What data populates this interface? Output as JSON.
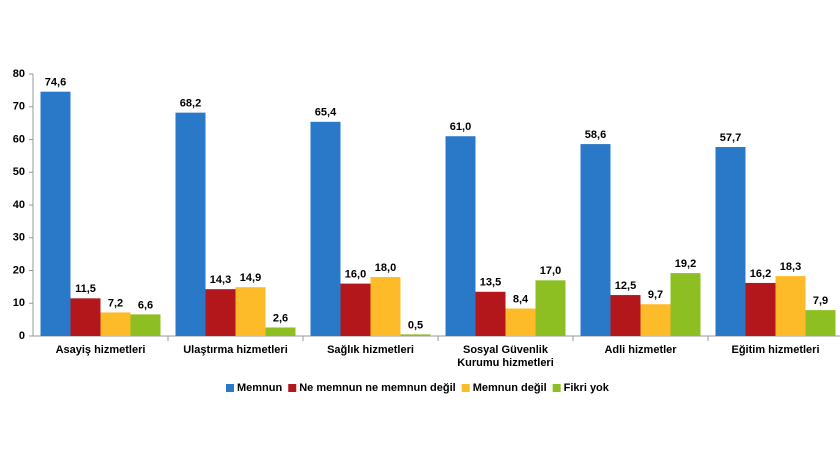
{
  "chart_data": {
    "type": "bar",
    "categories": [
      "Asayiş hizmetleri",
      "Ulaştırma hizmetleri",
      "Sağlık hizmetleri",
      "Sosyal Güvenlik Kurumu hizmetleri",
      "Adli hizmetler",
      "Eğitim hizmetleri"
    ],
    "series": [
      {
        "name": "Memnun",
        "color": "#2a78c8",
        "values": [
          74.6,
          68.2,
          65.4,
          61.0,
          58.6,
          57.7
        ],
        "value_labels": [
          "74,6",
          "68,2",
          "65,4",
          "61,0",
          "58,6",
          "57,7"
        ]
      },
      {
        "name": "Ne memnun ne memnun değil",
        "color": "#b3171b",
        "values": [
          11.5,
          14.3,
          16.0,
          13.5,
          12.5,
          16.2
        ],
        "value_labels": [
          "11,5",
          "14,3",
          "16,0",
          "13,5",
          "12,5",
          "16,2"
        ]
      },
      {
        "name": "Memnun değil",
        "color": "#fdbb2a",
        "values": [
          7.2,
          14.9,
          18.0,
          8.4,
          9.7,
          18.3
        ],
        "value_labels": [
          "7,2",
          "14,9",
          "18,0",
          "8,4",
          "9,7",
          "18,3"
        ]
      },
      {
        "name": "Fikri yok",
        "color": "#8dbf22",
        "values": [
          6.6,
          2.6,
          0.5,
          17.0,
          19.2,
          7.9
        ],
        "value_labels": [
          "6,6",
          "2,6",
          "0,5",
          "17,0",
          "19,2",
          "7,9"
        ]
      }
    ],
    "ylim": [
      0,
      80
    ],
    "yticks": [
      0,
      10,
      20,
      30,
      40,
      50,
      60,
      70,
      80
    ],
    "grid": false
  }
}
